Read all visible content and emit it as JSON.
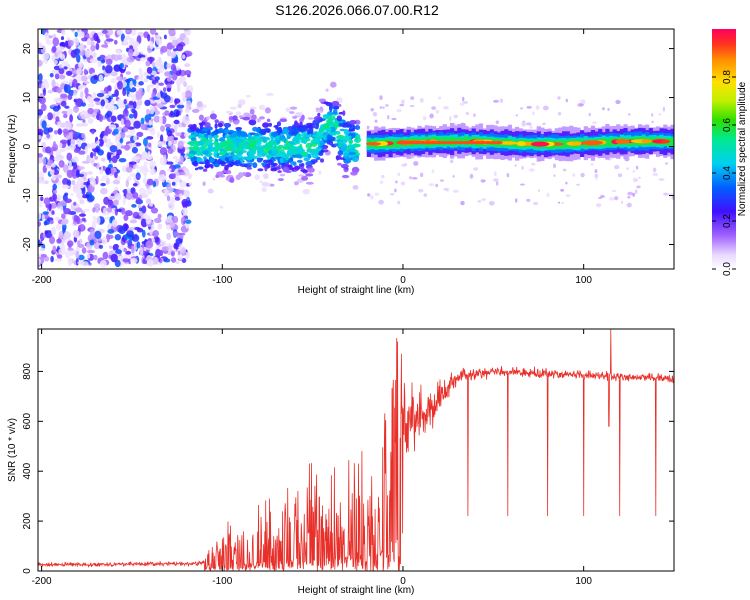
{
  "title": "S126.2026.066.07.00.R12",
  "colors": {
    "snr_line": "#e8302a",
    "axis": "#000000"
  },
  "chart_data": [
    {
      "type": "heatmap",
      "xlabel": "Height of straight line (km)",
      "ylabel": "Frequency (Hz)",
      "xlim": [
        -202,
        150
      ],
      "ylim": [
        -25,
        24
      ],
      "xticks": [
        -200,
        -100,
        0,
        100
      ],
      "yticks": [
        -20,
        -10,
        0,
        10,
        20
      ],
      "colorbar": {
        "label": "Normalized spectral amplitude",
        "range": [
          0,
          1
        ],
        "ticks": [
          0.0,
          0.2,
          0.4,
          0.6,
          0.8
        ]
      },
      "regions": [
        {
          "name": "noise",
          "x_range": [
            -202,
            -118
          ],
          "freq_range": [
            -24,
            24
          ],
          "amplitude": 0.15
        },
        {
          "name": "transition",
          "x_range": [
            -118,
            -25
          ],
          "center_freq": 0,
          "spread_hz": 5,
          "amplitude": 0.35
        },
        {
          "name": "signal",
          "x_range": [
            -20,
            150
          ],
          "center_freq": 0.8,
          "spread_hz": 1.2,
          "amplitude": 0.85
        }
      ]
    },
    {
      "type": "line",
      "xlabel": "Height of straight line (km)",
      "ylabel": "SNR (10 * v/v)",
      "xlim": [
        -202,
        150
      ],
      "ylim": [
        0,
        970
      ],
      "xticks": [
        -200,
        -100,
        0,
        100
      ],
      "yticks": [
        0,
        200,
        400,
        600,
        800
      ],
      "envelope": [
        {
          "x": -202,
          "mean": 25,
          "noise": 10
        },
        {
          "x": -112,
          "mean": 30,
          "noise": 12
        },
        {
          "x": -100,
          "mean": 80,
          "noise": 50
        },
        {
          "x": -60,
          "mean": 160,
          "noise": 120
        },
        {
          "x": -30,
          "mean": 230,
          "noise": 160
        },
        {
          "x": -12,
          "mean": 280,
          "noise": 180
        },
        {
          "x": 0,
          "mean": 600,
          "noise": 200
        },
        {
          "x": 15,
          "mean": 650,
          "noise": 120
        },
        {
          "x": 30,
          "mean": 780,
          "noise": 40
        },
        {
          "x": 50,
          "mean": 800,
          "noise": 25
        },
        {
          "x": 150,
          "mean": 770,
          "noise": 25
        }
      ],
      "dips": [
        {
          "x": 36,
          "value": 220
        },
        {
          "x": 58,
          "value": 220
        },
        {
          "x": 80,
          "value": 220
        },
        {
          "x": 100,
          "value": 220
        },
        {
          "x": 120,
          "value": 220
        },
        {
          "x": 140,
          "value": 220
        },
        {
          "x": 114,
          "value": 580
        }
      ],
      "peaks": [
        {
          "x": 115,
          "value": 970
        },
        {
          "x": -3,
          "value": 920
        }
      ]
    }
  ]
}
